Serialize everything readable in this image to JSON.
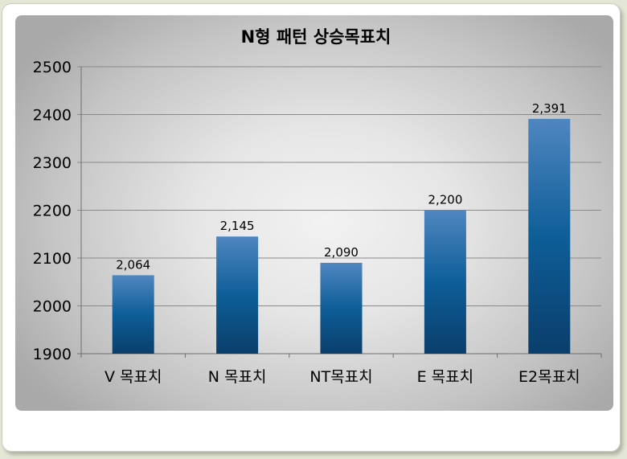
{
  "chart_data": {
    "type": "bar",
    "title": "N형 패턴 상승목표치",
    "categories": [
      "V 목표치",
      "N 목표치",
      "NT목표치",
      "E 목표치",
      "E2목표치"
    ],
    "values": [
      2064,
      2145,
      2090,
      2200,
      2391
    ],
    "value_labels": [
      "2,064",
      "2,145",
      "2,090",
      "2,200",
      "2,391"
    ],
    "ylim": [
      1900,
      2500
    ],
    "yticks": [
      "1900",
      "2000",
      "2100",
      "2200",
      "2300",
      "2400",
      "2500"
    ],
    "grid": true,
    "legend": "none",
    "colors": {
      "bar_top": "#4f86c0",
      "bar_mid": "#0e5e98",
      "bar_bottom": "#0a3e6b",
      "grid": "#8a8a8a",
      "text": "#000000"
    }
  }
}
